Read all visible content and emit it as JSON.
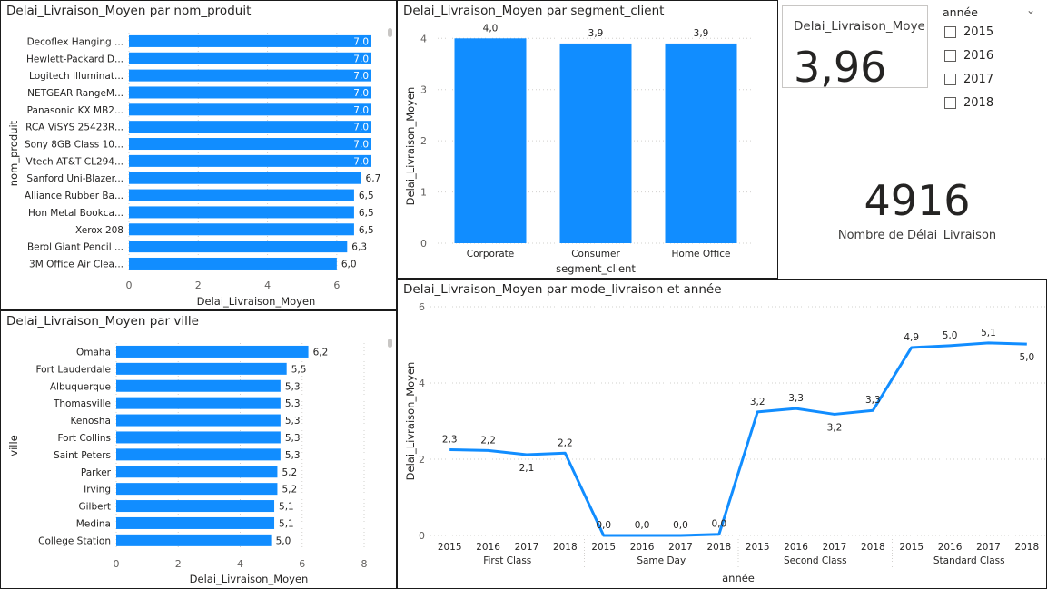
{
  "colors": {
    "bar": "#118DFF",
    "grid": "#d2d0ce",
    "text": "#605e5c"
  },
  "card": {
    "label": "Delai_Livraison_Moyen",
    "value": "3,96"
  },
  "slicer": {
    "title": "année",
    "items": [
      "2015",
      "2016",
      "2017",
      "2018"
    ],
    "chevron_icon": "chevron-down-icon"
  },
  "count": {
    "value": "4916",
    "label": "Nombre de Délai_Livraison"
  },
  "chart_data": [
    {
      "type": "bar",
      "orientation": "horizontal",
      "title": "Delai_Livraison_Moyen par nom_produit",
      "xlabel": "Delai_Livraison_Moyen",
      "ylabel": "nom_produit",
      "xlim": [
        0,
        7
      ],
      "xticks": [
        "0",
        "2",
        "4",
        "6"
      ],
      "categories": [
        "Decoflex Hanging ...",
        "Hewlett-Packard D...",
        "Logitech Illuminat...",
        "NETGEAR RangeM...",
        "Panasonic KX MB2...",
        "RCA ViSYS 25423R...",
        "Sony 8GB Class 10...",
        "Vtech AT&T CL294...",
        "Sanford Uni-Blazer...",
        "Alliance Rubber Ba...",
        "Hon Metal Bookca...",
        "Xerox 208",
        "Berol Giant Pencil ...",
        "3M Office Air Clea..."
      ],
      "values": [
        7.0,
        7.0,
        7.0,
        7.0,
        7.0,
        7.0,
        7.0,
        7.0,
        6.7,
        6.5,
        6.5,
        6.5,
        6.3,
        6.0
      ],
      "labels": [
        "7,0",
        "7,0",
        "7,0",
        "7,0",
        "7,0",
        "7,0",
        "7,0",
        "7,0",
        "6,7",
        "6,5",
        "6,5",
        "6,5",
        "6,3",
        "6,0"
      ]
    },
    {
      "type": "bar",
      "orientation": "vertical",
      "title": "Delai_Livraison_Moyen par segment_client",
      "xlabel": "segment_client",
      "ylabel": "Delai_Livraison_Moyen",
      "ylim": [
        0,
        4.2
      ],
      "yticks": [
        "0",
        "1",
        "2",
        "3",
        "4"
      ],
      "categories": [
        "Corporate",
        "Consumer",
        "Home Office"
      ],
      "values": [
        4.0,
        3.9,
        3.9
      ],
      "labels": [
        "4,0",
        "3,9",
        "3,9"
      ]
    },
    {
      "type": "bar",
      "orientation": "horizontal",
      "title": "Delai_Livraison_Moyen par ville",
      "xlabel": "Delai_Livraison_Moyen",
      "ylabel": "ville",
      "xlim": [
        0,
        8
      ],
      "xticks": [
        "0",
        "2",
        "4",
        "6",
        "8"
      ],
      "categories": [
        "Omaha",
        "Fort Lauderdale",
        "Albuquerque",
        "Thomasville",
        "Kenosha",
        "Fort Collins",
        "Saint Peters",
        "Parker",
        "Irving",
        "Gilbert",
        "Medina",
        "College Station"
      ],
      "values": [
        6.2,
        5.5,
        5.3,
        5.3,
        5.3,
        5.3,
        5.3,
        5.2,
        5.2,
        5.1,
        5.1,
        5.0
      ],
      "labels": [
        "6,2",
        "5,5",
        "5,3",
        "5,3",
        "5,3",
        "5,3",
        "5,3",
        "5,2",
        "5,2",
        "5,1",
        "5,1",
        "5,0"
      ]
    },
    {
      "type": "line",
      "title": "Delai_Livraison_Moyen par mode_livraison et année",
      "xlabel": "année",
      "ylabel": "Delai_Livraison_Moyen",
      "ylim": [
        0,
        6
      ],
      "yticks": [
        "0",
        "2",
        "4",
        "6"
      ],
      "groups": [
        "First Class",
        "Same Day",
        "Second Class",
        "Standard Class"
      ],
      "years": [
        "2015",
        "2016",
        "2017",
        "2018"
      ],
      "values": [
        2.25,
        2.23,
        2.12,
        2.16,
        0.0,
        0.0,
        0.0,
        0.03,
        3.24,
        3.33,
        3.18,
        3.28,
        4.93,
        4.98,
        5.05,
        5.02
      ],
      "labels": [
        "2,3",
        "2,2",
        "2,1",
        "2,2",
        "0,0",
        "0,0",
        "0,0",
        "0,0",
        "3,2",
        "3,3",
        "3,2",
        "3,3",
        "4,9",
        "5,0",
        "5,1",
        "5,0"
      ]
    }
  ]
}
